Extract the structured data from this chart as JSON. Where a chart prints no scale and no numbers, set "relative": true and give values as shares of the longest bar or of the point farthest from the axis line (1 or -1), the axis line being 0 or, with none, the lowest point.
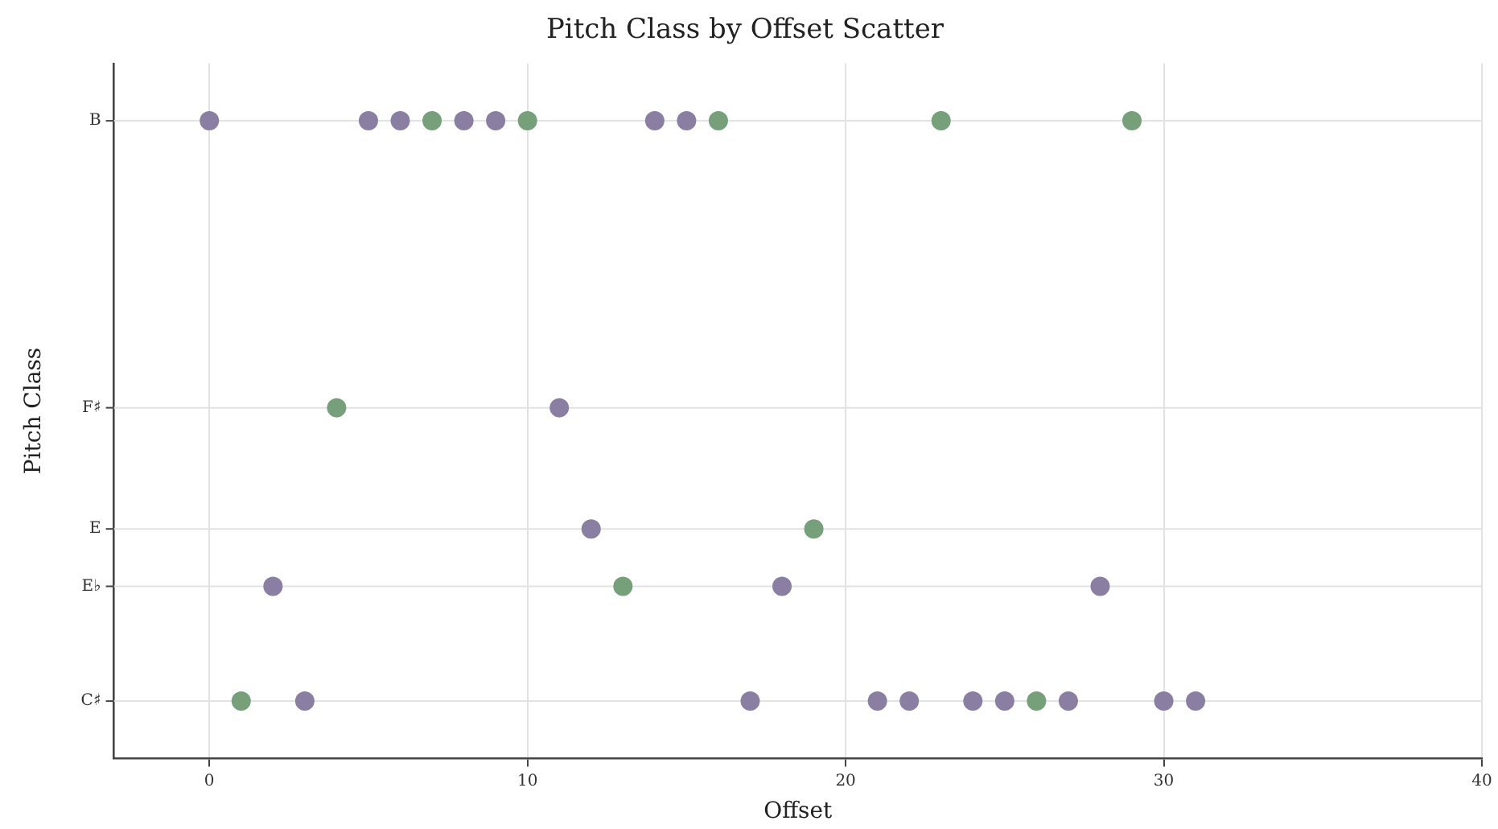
{
  "chart_data": {
    "type": "scatter",
    "title": "Pitch Class by Offset Scatter",
    "xlabel": "Offset",
    "ylabel": "Pitch Class",
    "relative": true,
    "series": [
      {
        "x": [
          0,
          1,
          2,
          3,
          4,
          5,
          6,
          7,
          8,
          9,
          10,
          11,
          12,
          13,
          14,
          15,
          16,
          17,
          18,
          19,
          21,
          22,
          23,
          24,
          25,
          26,
          27,
          28,
          29,
          30,
          31
        ],
        "values": [
          1,
          0.09,
          0.27,
          0.09,
          0.55,
          1,
          1,
          1,
          1,
          1,
          1,
          0.55,
          0.36,
          0.27,
          1,
          1,
          1,
          0.09,
          0.27,
          0.36,
          0.09,
          0.09,
          1,
          0.09,
          0.09,
          0.09,
          0.09,
          0.27,
          1,
          0.09,
          0.09
        ],
        "colors": [
          "#8a7fa3",
          "#76a07a",
          "#8a7fa3",
          "#8a7fa3",
          "#76a07a",
          "#8a7fa3",
          "#8a7fa3",
          "#76a07a",
          "#8a7fa3",
          "#8a7fa3",
          "#76a07a",
          "#8a7fa3",
          "#8a7fa3",
          "#76a07a",
          "#8a7fa3",
          "#8a7fa3",
          "#76a07a",
          "#8a7fa3",
          "#8a7fa3",
          "#76a07a",
          "#8a7fa3",
          "#8a7fa3",
          "#76a07a",
          "#8a7fa3",
          "#8a7fa3",
          "#76a07a",
          "#8a7fa3",
          "#8a7fa3",
          "#76a07a",
          "#8a7fa3",
          "#8a7fa3"
        ]
      }
    ],
    "xlim": [
      -3,
      40
    ],
    "xticks": [
      0,
      10,
      20,
      30,
      40
    ],
    "ref_lines": [
      {
        "axis": "y",
        "value": 0.09,
        "label": "C♯"
      },
      {
        "axis": "y",
        "value": 0.27,
        "label": "E♭"
      },
      {
        "axis": "y",
        "value": 0.36,
        "label": "E"
      },
      {
        "axis": "y",
        "value": 0.55,
        "label": "F♯"
      },
      {
        "axis": "y",
        "value": 1,
        "label": "B"
      }
    ],
    "grid": true,
    "legend": false,
    "marker": "circle"
  }
}
